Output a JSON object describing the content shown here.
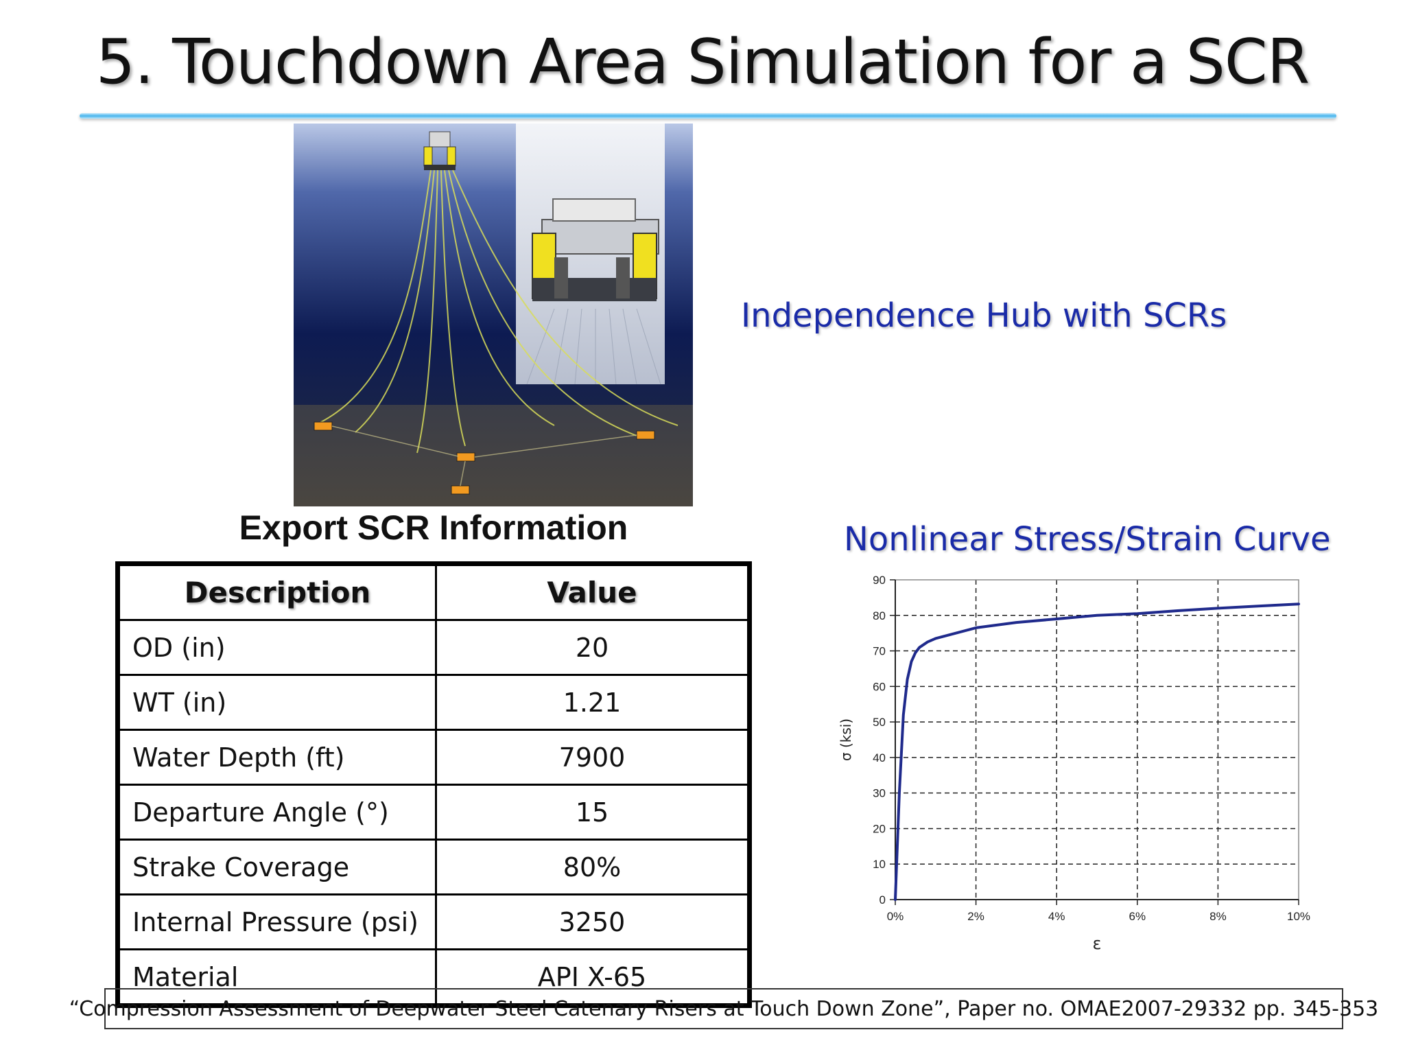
{
  "slide": {
    "title": "5. Touchdown Area Simulation for a SCR",
    "image_caption": "Independence Hub with SCRs",
    "citation": "“Compression Assessment of Deepwater Steel Catenary Risers at Touch Down Zone”, Paper no. OMAE2007-29332 pp. 345-353"
  },
  "table": {
    "title": "Export SCR Information",
    "headers": [
      "Description",
      "Value"
    ],
    "rows": [
      {
        "description": "OD (in)",
        "value": "20"
      },
      {
        "description": "WT (in)",
        "value": "1.21"
      },
      {
        "description": "Water Depth (ft)",
        "value": "7900"
      },
      {
        "description": "Departure Angle (°)",
        "value": "15"
      },
      {
        "description": "Strake Coverage",
        "value": "80%"
      },
      {
        "description": "Internal Pressure (psi)",
        "value": "3250"
      },
      {
        "description": "Material",
        "value": "API X-65"
      }
    ]
  },
  "chart_data": {
    "type": "line",
    "title": "Nonlinear Stress/Strain Curve",
    "xlabel": "ε",
    "ylabel": "σ (ksi)",
    "xlim": [
      0,
      10
    ],
    "ylim": [
      0,
      90
    ],
    "x_ticks": [
      "0%",
      "2%",
      "4%",
      "6%",
      "8%",
      "10%"
    ],
    "y_ticks": [
      "0",
      "10",
      "20",
      "30",
      "40",
      "50",
      "60",
      "70",
      "80",
      "90"
    ],
    "grid": true,
    "line_color": "#1f2a8c",
    "series": [
      {
        "x": [
          0,
          0.1,
          0.2,
          0.3,
          0.4,
          0.5,
          0.6,
          0.8,
          1.0,
          1.5,
          2.0,
          3.0,
          4.0,
          5.0,
          6.0,
          7.0,
          8.0,
          9.0,
          10.0
        ],
        "values": [
          0,
          30,
          52,
          62,
          67,
          69.5,
          71,
          72.5,
          73.5,
          75,
          76.5,
          78,
          79,
          80,
          80.5,
          81.3,
          82,
          82.6,
          83.2
        ]
      }
    ]
  }
}
